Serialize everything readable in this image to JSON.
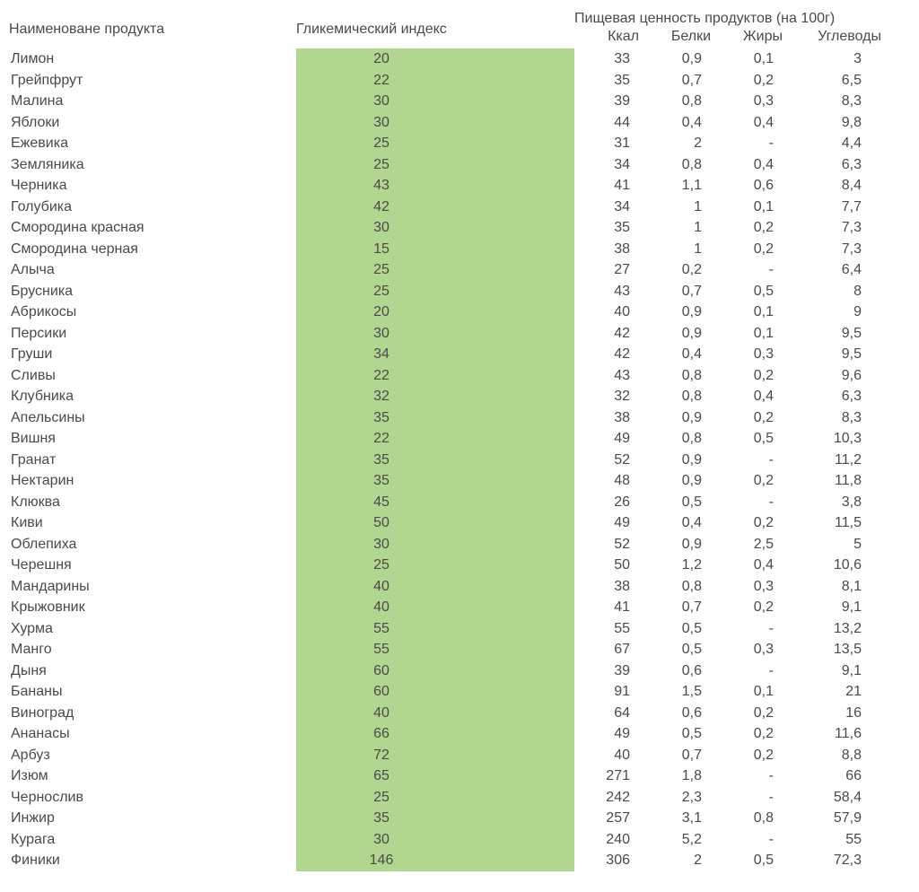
{
  "headers": {
    "name": "Наименоване продукта",
    "gi": "Гликемический индекс",
    "nutrition_title": "Пищевая ценность продуктов (на 100г)",
    "kcal": "Ккал",
    "protein": "Белки",
    "fat": "Жиры",
    "carbs": "Углеводы"
  },
  "styling": {
    "gi_cell_bg": "#b1d690",
    "text_color": "#4a4a4a",
    "font_size": 16,
    "row_height": 23.5,
    "col_widths": {
      "name": 320,
      "gi": 310,
      "kcal": 80,
      "protein": 80,
      "fat": 80,
      "carbs": 110
    }
  },
  "rows": [
    {
      "name": "Лимон",
      "gi": "20",
      "kcal": "33",
      "protein": "0,9",
      "fat": "0,1",
      "carbs": "3"
    },
    {
      "name": "Грейпфрут",
      "gi": "22",
      "kcal": "35",
      "protein": "0,7",
      "fat": "0,2",
      "carbs": "6,5"
    },
    {
      "name": "Малина",
      "gi": "30",
      "kcal": "39",
      "protein": "0,8",
      "fat": "0,3",
      "carbs": "8,3"
    },
    {
      "name": "Яблоки",
      "gi": "30",
      "kcal": "44",
      "protein": "0,4",
      "fat": "0,4",
      "carbs": "9,8"
    },
    {
      "name": "Ежевика",
      "gi": "25",
      "kcal": "31",
      "protein": "2",
      "fat": "-",
      "carbs": "4,4"
    },
    {
      "name": "Земляника",
      "gi": "25",
      "kcal": "34",
      "protein": "0,8",
      "fat": "0,4",
      "carbs": "6,3"
    },
    {
      "name": "Черника",
      "gi": "43",
      "kcal": "41",
      "protein": "1,1",
      "fat": "0,6",
      "carbs": "8,4"
    },
    {
      "name": "Голубика",
      "gi": "42",
      "kcal": "34",
      "protein": "1",
      "fat": "0,1",
      "carbs": "7,7"
    },
    {
      "name": "Смородина красная",
      "gi": "30",
      "kcal": "35",
      "protein": "1",
      "fat": "0,2",
      "carbs": "7,3"
    },
    {
      "name": "Смородина черная",
      "gi": "15",
      "kcal": "38",
      "protein": "1",
      "fat": "0,2",
      "carbs": "7,3"
    },
    {
      "name": "Алыча",
      "gi": "25",
      "kcal": "27",
      "protein": "0,2",
      "fat": "-",
      "carbs": "6,4"
    },
    {
      "name": "Брусника",
      "gi": "25",
      "kcal": "43",
      "protein": "0,7",
      "fat": "0,5",
      "carbs": "8"
    },
    {
      "name": "Абрикосы",
      "gi": "20",
      "kcal": "40",
      "protein": "0,9",
      "fat": "0,1",
      "carbs": "9"
    },
    {
      "name": "Персики",
      "gi": "30",
      "kcal": "42",
      "protein": "0,9",
      "fat": "0,1",
      "carbs": "9,5"
    },
    {
      "name": "Груши",
      "gi": "34",
      "kcal": "42",
      "protein": "0,4",
      "fat": "0,3",
      "carbs": "9,5"
    },
    {
      "name": "Сливы",
      "gi": "22",
      "kcal": "43",
      "protein": "0,8",
      "fat": "0,2",
      "carbs": "9,6"
    },
    {
      "name": "Клубника",
      "gi": "32",
      "kcal": "32",
      "protein": "0,8",
      "fat": "0,4",
      "carbs": "6,3"
    },
    {
      "name": "Апельсины",
      "gi": "35",
      "kcal": "38",
      "protein": "0,9",
      "fat": "0,2",
      "carbs": "8,3"
    },
    {
      "name": "Вишня",
      "gi": "22",
      "kcal": "49",
      "protein": "0,8",
      "fat": "0,5",
      "carbs": "10,3"
    },
    {
      "name": "Гранат",
      "gi": "35",
      "kcal": "52",
      "protein": "0,9",
      "fat": "-",
      "carbs": "11,2"
    },
    {
      "name": "Нектарин",
      "gi": "35",
      "kcal": "48",
      "protein": "0,9",
      "fat": "0,2",
      "carbs": "11,8"
    },
    {
      "name": "Клюква",
      "gi": "45",
      "kcal": "26",
      "protein": "0,5",
      "fat": "-",
      "carbs": "3,8"
    },
    {
      "name": "Киви",
      "gi": "50",
      "kcal": "49",
      "protein": "0,4",
      "fat": "0,2",
      "carbs": "11,5"
    },
    {
      "name": "Облепиха",
      "gi": "30",
      "kcal": "52",
      "protein": "0,9",
      "fat": "2,5",
      "carbs": "5"
    },
    {
      "name": "Черешня",
      "gi": "25",
      "kcal": "50",
      "protein": "1,2",
      "fat": "0,4",
      "carbs": "10,6"
    },
    {
      "name": "Мандарины",
      "gi": "40",
      "kcal": "38",
      "protein": "0,8",
      "fat": "0,3",
      "carbs": "8,1"
    },
    {
      "name": "Крыжовник",
      "gi": "40",
      "kcal": "41",
      "protein": "0,7",
      "fat": "0,2",
      "carbs": "9,1"
    },
    {
      "name": "Хурма",
      "gi": "55",
      "kcal": "55",
      "protein": "0,5",
      "fat": "-",
      "carbs": "13,2"
    },
    {
      "name": "Манго",
      "gi": "55",
      "kcal": "67",
      "protein": "0,5",
      "fat": "0,3",
      "carbs": "13,5"
    },
    {
      "name": "Дыня",
      "gi": "60",
      "kcal": "39",
      "protein": "0,6",
      "fat": "-",
      "carbs": "9,1"
    },
    {
      "name": "Бананы",
      "gi": "60",
      "kcal": "91",
      "protein": "1,5",
      "fat": "0,1",
      "carbs": "21"
    },
    {
      "name": "Виноград",
      "gi": "40",
      "kcal": "64",
      "protein": "0,6",
      "fat": "0,2",
      "carbs": "16"
    },
    {
      "name": "Ананасы",
      "gi": "66",
      "kcal": "49",
      "protein": "0,5",
      "fat": "0,2",
      "carbs": "11,6"
    },
    {
      "name": "Арбуз",
      "gi": "72",
      "kcal": "40",
      "protein": "0,7",
      "fat": "0,2",
      "carbs": "8,8"
    },
    {
      "name": "Изюм",
      "gi": "65",
      "kcal": "271",
      "protein": "1,8",
      "fat": "-",
      "carbs": "66"
    },
    {
      "name": "Чернослив",
      "gi": "25",
      "kcal": "242",
      "protein": "2,3",
      "fat": "-",
      "carbs": "58,4"
    },
    {
      "name": "Инжир",
      "gi": "35",
      "kcal": "257",
      "protein": "3,1",
      "fat": "0,8",
      "carbs": "57,9"
    },
    {
      "name": "Курага",
      "gi": "30",
      "kcal": "240",
      "protein": "5,2",
      "fat": "-",
      "carbs": "55"
    },
    {
      "name": "Финики",
      "gi": "146",
      "kcal": "306",
      "protein": "2",
      "fat": "0,5",
      "carbs": "72,3"
    }
  ]
}
